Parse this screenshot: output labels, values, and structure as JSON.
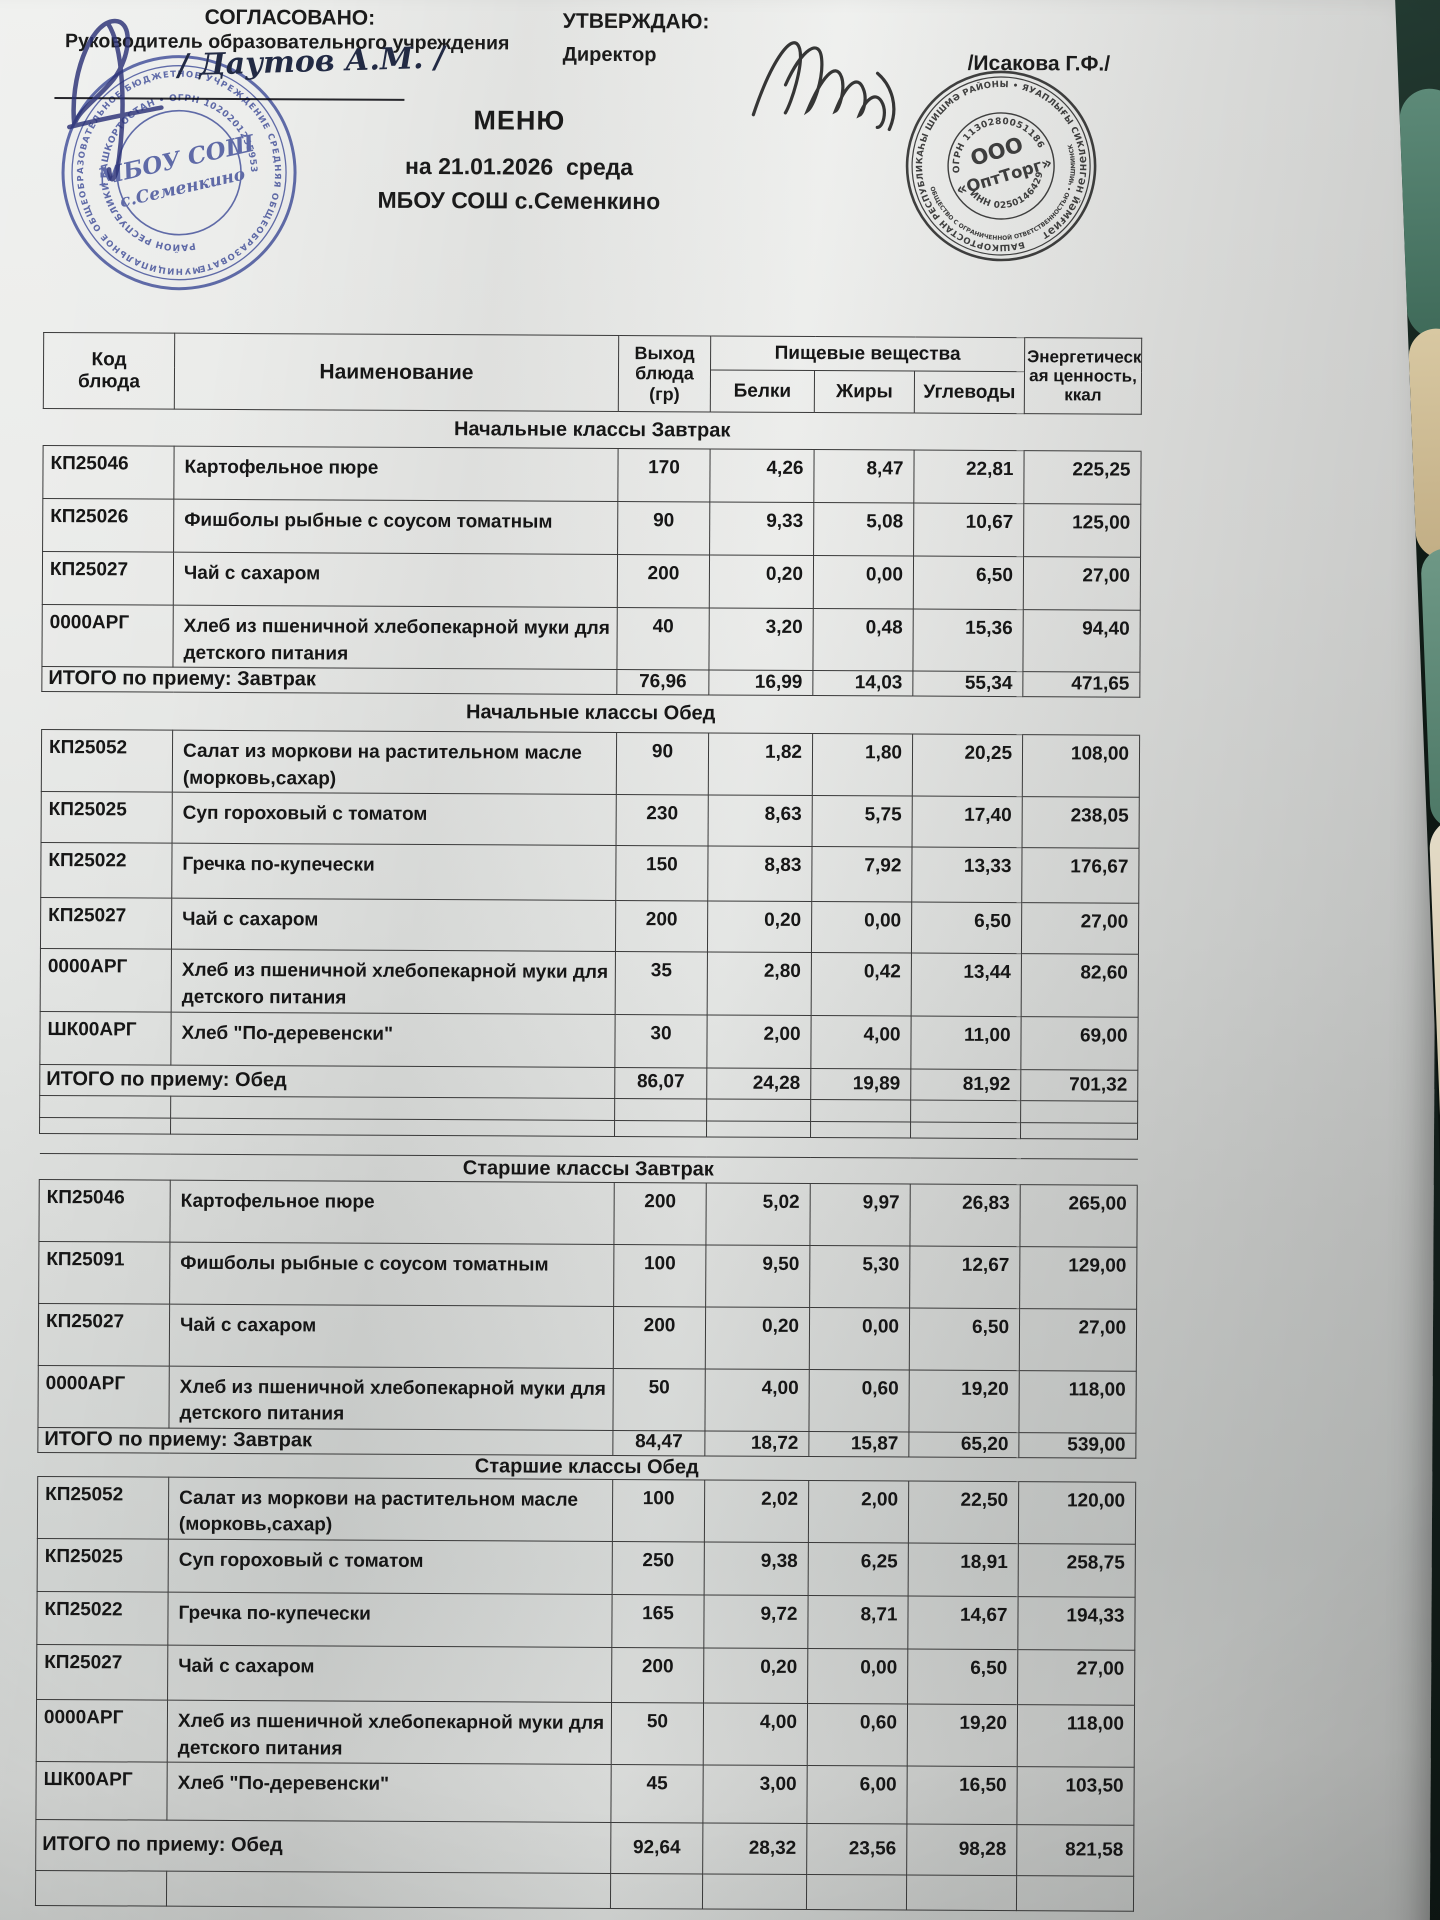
{
  "colors": {
    "stamp_blue": "#3b4aa0",
    "stamp_black": "#2b2b2b",
    "paper": "#e7e8e6",
    "ink": "#1b1b1b",
    "background": "#17241f"
  },
  "approval": {
    "left_label": "СОГЛАСОВАНО:",
    "left_role": "Руководитель образовательного учреждения",
    "left_signature_name": "/ Даутов А.М. /",
    "right_label": "УТВЕРЖДАЮ:",
    "right_role": "Директор",
    "right_name": "/Исакова Г.Ф./"
  },
  "title": {
    "doc": "МЕНЮ",
    "date_line": "на 21.01.2026  среда",
    "school": "МБОУ СОШ с.Семенкино"
  },
  "stamps": {
    "school": {
      "ring_outer": "МУНИЦИПАЛЬНОЕ ОБЩЕОБРАЗОВАТЕЛЬНОЕ БЮДЖЕТНОЕ УЧРЕЖДЕНИЕ СРЕДНЯЯ ОБЩЕОБРАЗОВАТЕЛЬНАЯ ШКОЛА",
      "ring_inner": "РАЙОН РЕСПУБЛИКИ БАШКОРТОСТАН • ОГРН 1020201255953",
      "center_line1": "МБОУ СОШ",
      "center_line2": "с.Семенкино"
    },
    "supplier": {
      "ring_top": "БАШКОРТОСТАН РЕСПУБЛИКАҺЫ ШИШМӘ РАЙОНЫ • ЯУАПЛЫҒЫ СИКЛӘНГӘН ЙӘМҒИӘТ",
      "ring_bottom": "ОБЩЕСТВО С ОГРАНИЧЕННОЙ ОТВЕТСТВЕННОСТЬЮ • ЧИШМИНСКИЙ РАЙОН • РЕСПУБЛИКА БАШКОРТОСТАН",
      "ogrn": "ОГРН 1130280051186",
      "center_line1": "ООО",
      "center_line2": "«ОптТорг»",
      "inn": "ИНН 0250146429"
    }
  },
  "table": {
    "header": {
      "code": "Код\nблюда",
      "name": "Наименование",
      "out": "Выход\nблюда\n(гр)",
      "nutrients": "Пищевые вещества",
      "protein": "Белки",
      "fat": "Жиры",
      "carbs": "Углеводы",
      "energy": "Энергетическ\nая ценность,\nккал"
    },
    "sections": [
      {
        "title": "Начальные классы Завтрак",
        "rows": [
          {
            "code": "КП25046",
            "name": "Картофельное пюре",
            "out": "170",
            "protein": "4,26",
            "fat": "8,47",
            "carbs": "22,81",
            "energy": "225,25"
          },
          {
            "code": "КП25026",
            "name": "Фишболы рыбные с соусом томатным",
            "out": "90",
            "protein": "9,33",
            "fat": "5,08",
            "carbs": "10,67",
            "energy": "125,00"
          },
          {
            "code": "КП25027",
            "name": "Чай с сахаром",
            "out": "200",
            "protein": "0,20",
            "fat": "0,00",
            "carbs": "6,50",
            "energy": "27,00"
          },
          {
            "code": "0000АРГ",
            "name": "Хлеб из пшеничной хлебопекарной муки для\nдетского питания",
            "out": "40",
            "protein": "3,20",
            "fat": "0,48",
            "carbs": "15,36",
            "energy": "94,40"
          }
        ],
        "total": {
          "label": "ИТОГО по приему: Завтрак",
          "out": "76,96",
          "protein": "16,99",
          "fat": "14,03",
          "carbs": "55,34",
          "energy": "471,65"
        }
      },
      {
        "title": "Начальные классы Обед",
        "rows": [
          {
            "code": "КП25052",
            "name": "Салат из моркови на растительном масле\n(морковь,сахар)",
            "out": "90",
            "protein": "1,82",
            "fat": "1,80",
            "carbs": "20,25",
            "energy": "108,00"
          },
          {
            "code": "КП25025",
            "name": "Суп гороховый с томатом",
            "out": "230",
            "protein": "8,63",
            "fat": "5,75",
            "carbs": "17,40",
            "energy": "238,05"
          },
          {
            "code": "КП25022",
            "name": "Гречка по-купечески",
            "out": "150",
            "protein": "8,83",
            "fat": "7,92",
            "carbs": "13,33",
            "energy": "176,67"
          },
          {
            "code": "КП25027",
            "name": "Чай с сахаром",
            "out": "200",
            "protein": "0,20",
            "fat": "0,00",
            "carbs": "6,50",
            "energy": "27,00"
          },
          {
            "code": "0000АРГ",
            "name": "Хлеб из пшеничной хлебопекарной муки для\nдетского питания",
            "out": "35",
            "protein": "2,80",
            "fat": "0,42",
            "carbs": "13,44",
            "energy": "82,60"
          },
          {
            "code": "ШК00АРГ",
            "name": "Хлеб \"По-деревенски\"",
            "out": "30",
            "protein": "2,00",
            "fat": "4,00",
            "carbs": "11,00",
            "energy": "69,00"
          }
        ],
        "total": {
          "label": "ИТОГО по приему: Обед",
          "out": "86,07",
          "protein": "24,28",
          "fat": "19,89",
          "carbs": "81,92",
          "energy": "701,32"
        }
      },
      {
        "title": "Старшие классы Завтрак",
        "rows": [
          {
            "code": "КП25046",
            "name": "Картофельное пюре",
            "out": "200",
            "protein": "5,02",
            "fat": "9,97",
            "carbs": "26,83",
            "energy": "265,00"
          },
          {
            "code": "КП25091",
            "name": "Фишболы рыбные с соусом томатным",
            "out": "100",
            "protein": "9,50",
            "fat": "5,30",
            "carbs": "12,67",
            "energy": "129,00"
          },
          {
            "code": "КП25027",
            "name": "Чай с сахаром",
            "out": "200",
            "protein": "0,20",
            "fat": "0,00",
            "carbs": "6,50",
            "energy": "27,00"
          },
          {
            "code": "0000АРГ",
            "name": "Хлеб из пшеничной хлебопекарной муки для\nдетского питания",
            "out": "50",
            "protein": "4,00",
            "fat": "0,60",
            "carbs": "19,20",
            "energy": "118,00"
          }
        ],
        "total": {
          "label": "ИТОГО по приему: Завтрак",
          "out": "84,47",
          "protein": "18,72",
          "fat": "15,87",
          "carbs": "65,20",
          "energy": "539,00"
        }
      },
      {
        "title": "Старшие классы Обед",
        "rows": [
          {
            "code": "КП25052",
            "name": "Салат из моркови на растительном масле\n(морковь,сахар)",
            "out": "100",
            "protein": "2,02",
            "fat": "2,00",
            "carbs": "22,50",
            "energy": "120,00"
          },
          {
            "code": "КП25025",
            "name": "Суп гороховый с томатом",
            "out": "250",
            "protein": "9,38",
            "fat": "6,25",
            "carbs": "18,91",
            "energy": "258,75"
          },
          {
            "code": "КП25022",
            "name": "Гречка по-купечески",
            "out": "165",
            "protein": "9,72",
            "fat": "8,71",
            "carbs": "14,67",
            "energy": "194,33"
          },
          {
            "code": "КП25027",
            "name": "Чай с сахаром",
            "out": "200",
            "protein": "0,20",
            "fat": "0,00",
            "carbs": "6,50",
            "energy": "27,00"
          },
          {
            "code": "0000АРГ",
            "name": "Хлеб из пшеничной хлебопекарной муки для\nдетского питания",
            "out": "50",
            "protein": "4,00",
            "fat": "0,60",
            "carbs": "19,20",
            "energy": "118,00"
          },
          {
            "code": "ШК00АРГ",
            "name": "Хлеб \"По-деревенски\"",
            "out": "45",
            "protein": "3,00",
            "fat": "6,00",
            "carbs": "16,50",
            "energy": "103,50"
          }
        ],
        "total": {
          "label": "ИТОГО по приему: Обед",
          "out": "92,64",
          "protein": "28,32",
          "fat": "23,56",
          "carbs": "98,28",
          "energy": "821,58"
        }
      }
    ]
  }
}
